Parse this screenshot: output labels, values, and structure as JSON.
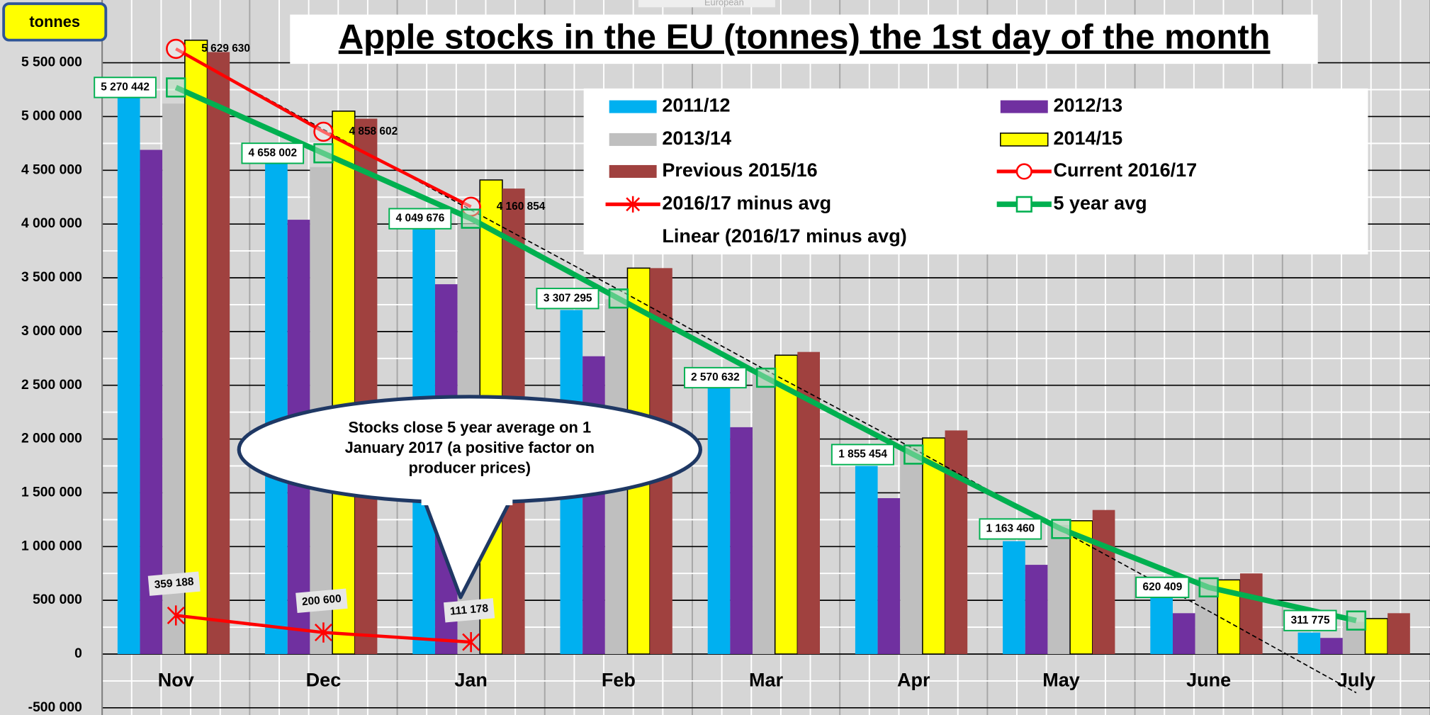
{
  "chart_data": {
    "type": "bar",
    "title": "Apple stocks in the EU (tonnes) the 1st day of the month",
    "y_label": "tonnes",
    "watermark": "European",
    "callout": [
      "Stocks close 5 year average on 1",
      "January 2017 (a positive factor on",
      "producer prices)"
    ],
    "categories": [
      "Nov",
      "Dec",
      "Jan",
      "Feb",
      "Mar",
      "Apr",
      "May",
      "June",
      "July"
    ],
    "ylim": [
      -550000,
      6050000
    ],
    "yticks": [
      {
        "value": -500000,
        "label": "-500 000"
      },
      0,
      {
        "value": 500000,
        "label": "500 000"
      },
      {
        "value": 1000000,
        "label": "1 000 000"
      },
      {
        "value": 1500000,
        "label": "1 500 000"
      },
      {
        "value": 2000000,
        "label": "2 000 000"
      },
      {
        "value": 2500000,
        "label": "2 500 000"
      },
      {
        "value": 3000000,
        "label": "3 000 000"
      },
      {
        "value": 3500000,
        "label": "3 500 000"
      },
      {
        "value": 4000000,
        "label": "4 000 000"
      },
      {
        "value": 4500000,
        "label": "4 500 000"
      },
      {
        "value": 5000000,
        "label": "5 000 000"
      },
      {
        "value": 5500000,
        "label": "5 500 000"
      }
    ],
    "grid": true,
    "series": [
      {
        "name": "2011/12",
        "style": "bar",
        "color": "#00b0f0",
        "values": [
          5200000,
          4580000,
          3950000,
          3200000,
          2500000,
          1750000,
          1050000,
          550000,
          200000
        ]
      },
      {
        "name": "2012/13",
        "style": "bar",
        "color": "#7030a0",
        "values": [
          4690000,
          4040000,
          3440000,
          2770000,
          2110000,
          1450000,
          830000,
          380000,
          150000
        ]
      },
      {
        "name": "2013/14",
        "style": "bar",
        "color": "#bfbfbf",
        "values": [
          5120000,
          4530000,
          4000000,
          3300000,
          2600000,
          1950000,
          1200000,
          700000,
          300000
        ]
      },
      {
        "name": "2014/15",
        "style": "bar",
        "color": "#ffff00",
        "outline": "#000000",
        "values": [
          5710000,
          5050000,
          4410000,
          3590000,
          2780000,
          2010000,
          1240000,
          690000,
          330000
        ]
      },
      {
        "name": "Previous 2015/16",
        "style": "bar",
        "color": "#a0413f",
        "values": [
          5600000,
          4980000,
          4330000,
          3590000,
          2810000,
          2080000,
          1340000,
          750000,
          380000
        ]
      },
      {
        "name": "Current 2016/17",
        "style": "line-circle",
        "color": "#ff0000",
        "values": [
          5629630,
          4858602,
          4160854,
          null,
          null,
          null,
          null,
          null,
          null
        ],
        "value_labels": [
          "5 629 630",
          "4 858 602",
          "4 160 854",
          null,
          null,
          null,
          null,
          null,
          null
        ]
      },
      {
        "name": "2016/17 minus avg",
        "style": "line-star",
        "color": "#ff0000",
        "values": [
          359188,
          200600,
          111178,
          null,
          null,
          null,
          null,
          null,
          null
        ],
        "value_labels": [
          "359 188",
          "200 600",
          "111 178",
          null,
          null,
          null,
          null,
          null,
          null
        ]
      },
      {
        "name": "5 year avg",
        "style": "line-square",
        "color": "#00b050",
        "values": [
          5270442,
          4658002,
          4049676,
          3307295,
          2570632,
          1855454,
          1163460,
          620409,
          311775
        ],
        "value_labels": [
          "5 270 442",
          "4 658 002",
          "4 049 676",
          "3 307 295",
          "2 570 632",
          "1 855 454",
          "1 163 460",
          "620 409",
          "311 775"
        ]
      },
      {
        "name": "Linear (2016/17 minus avg)",
        "style": "line-dashed",
        "color": "#000000",
        "values": [
          5630000,
          4880000,
          4130000,
          3390000,
          2640000,
          1910000,
          1150000,
          400000,
          -360000
        ]
      }
    ]
  }
}
